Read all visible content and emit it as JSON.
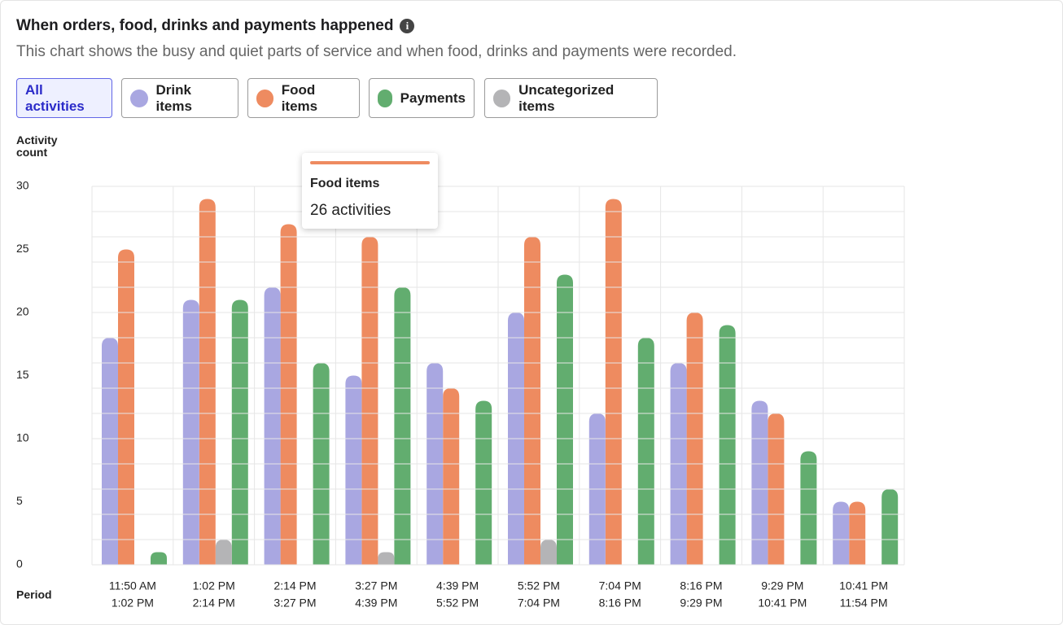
{
  "header": {
    "title": "When orders, food, drinks and payments happened",
    "subtitle": "This chart shows the busy and quiet parts of service and when food, drinks and payments were recorded."
  },
  "filters": {
    "all": "All activities"
  },
  "tooltip": {
    "title": "Food items",
    "text": "26 activities"
  },
  "chart_data": {
    "type": "bar",
    "y_label": "Activity count",
    "x_label": "Period",
    "categories": [
      [
        "11:50 AM",
        "1:02 PM"
      ],
      [
        "1:02 PM",
        "2:14 PM"
      ],
      [
        "2:14 PM",
        "3:27 PM"
      ],
      [
        "3:27 PM",
        "4:39 PM"
      ],
      [
        "4:39 PM",
        "5:52 PM"
      ],
      [
        "5:52 PM",
        "7:04 PM"
      ],
      [
        "7:04 PM",
        "8:16 PM"
      ],
      [
        "8:16 PM",
        "9:29 PM"
      ],
      [
        "9:29 PM",
        "10:41 PM"
      ],
      [
        "10:41 PM",
        "11:54 PM"
      ]
    ],
    "series": [
      {
        "name": "Drink items",
        "color": "#a9a7e1",
        "values": [
          18,
          21,
          22,
          15,
          16,
          20,
          12,
          16,
          13,
          5
        ]
      },
      {
        "name": "Food items",
        "color": "#ee8b60",
        "values": [
          25,
          29,
          27,
          26,
          14,
          26,
          29,
          20,
          12,
          5
        ]
      },
      {
        "name": "Uncategorized items",
        "color": "#b4b4b6",
        "values": [
          0,
          2,
          0,
          1,
          0,
          2,
          0,
          0,
          0,
          0
        ]
      },
      {
        "name": "Payments",
        "color": "#62ad6f",
        "values": [
          1,
          21,
          16,
          22,
          13,
          23,
          18,
          19,
          9,
          6
        ]
      }
    ],
    "ylim": [
      0,
      30
    ],
    "yticks": [
      0,
      5,
      10,
      15,
      20,
      25,
      30
    ],
    "ygrid": [
      0,
      2,
      4,
      6,
      8,
      10,
      12,
      14,
      16,
      18,
      20,
      22,
      24,
      26,
      28,
      30
    ],
    "grid": true
  }
}
